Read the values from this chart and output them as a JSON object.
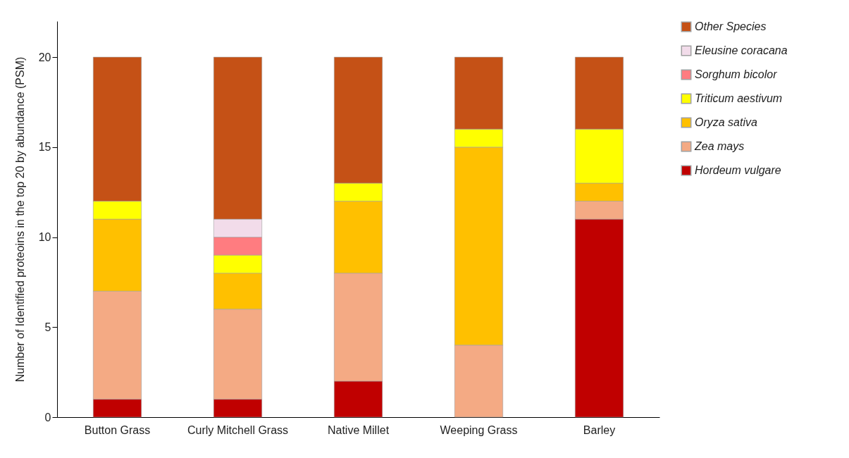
{
  "chart_data": {
    "type": "bar",
    "stacked": true,
    "ylabel": "Number of Identified proteoins in the top 20 by abundance (PSM)",
    "categories": [
      "Button Grass",
      "Curly Mitchell Grass",
      "Native Millet",
      "Weeping Grass",
      "Barley"
    ],
    "series": [
      {
        "name": "Hordeum vulgare",
        "color": "#c00000",
        "values": [
          1,
          1,
          2,
          null,
          11
        ]
      },
      {
        "name": "Zea mays",
        "color": "#f4aa84",
        "values": [
          6,
          5,
          6,
          4,
          1
        ]
      },
      {
        "name": "Oryza sativa",
        "color": "#ffc000",
        "values": [
          4,
          2,
          4,
          11,
          1
        ]
      },
      {
        "name": "Triticum aestivum",
        "color": "#ffff00",
        "values": [
          1,
          1,
          1,
          1,
          3
        ]
      },
      {
        "name": "Sorghum bicolor",
        "color": "#ff7c80",
        "values": [
          null,
          1,
          null,
          null,
          null
        ]
      },
      {
        "name": "Eleusine coracana",
        "color": "#f2dcea",
        "values": [
          null,
          1,
          null,
          null,
          null
        ]
      },
      {
        "name": "Other Species",
        "color": "#c55116",
        "values": [
          8,
          9,
          7,
          4,
          4
        ]
      }
    ],
    "ylim": [
      0,
      22
    ],
    "yticks": [
      0,
      5,
      10,
      15,
      20
    ],
    "grid": false,
    "legend": "right"
  }
}
